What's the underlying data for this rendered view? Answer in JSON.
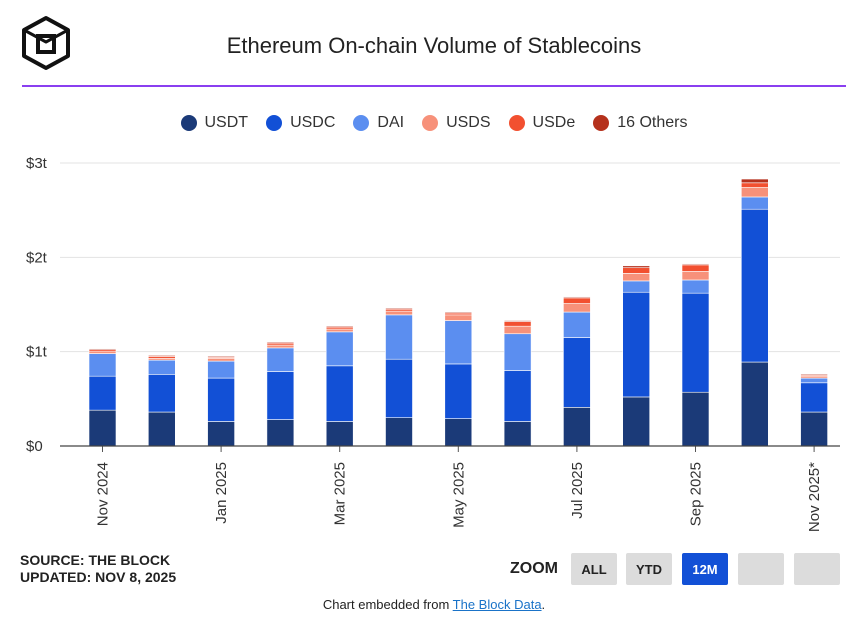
{
  "header": {
    "title": "Ethereum On-chain Volume of Stablecoins"
  },
  "source": {
    "line1": "SOURCE: THE BLOCK",
    "line2": "UPDATED: NOV 8, 2025"
  },
  "zoom": {
    "label": "ZOOM",
    "buttons": [
      "ALL",
      "YTD",
      "12M",
      "",
      ""
    ],
    "active": "12M"
  },
  "footer": {
    "prefix": "Chart embedded from ",
    "link_text": "The Block Data",
    "suffix": "."
  },
  "colors": {
    "accent": "#8a3ff0",
    "active_button": "#1250d6",
    "USDT": "#1b3a78",
    "USDC": "#1250d6",
    "DAI": "#5b8ef0",
    "USDS": "#f7917a",
    "USDe": "#f25030",
    "16 Others": "#b5311c"
  },
  "chart_data": {
    "type": "bar",
    "stacked": true,
    "title": "Ethereum On-chain Volume of Stablecoins",
    "xlabel": "",
    "ylabel": "",
    "ylim": [
      0,
      3
    ],
    "yticks": [
      0,
      1,
      2,
      3
    ],
    "ytick_labels": [
      "$0",
      "$1t",
      "$2t",
      "$3t"
    ],
    "legend_position": "top-center",
    "categories": [
      "Nov 2024",
      "Dec 2024",
      "Jan 2025",
      "Feb 2025",
      "Mar 2025",
      "Apr 2025",
      "May 2025",
      "Jun 2025",
      "Jul 2025",
      "Aug 2025",
      "Sep 2025",
      "Oct 2025",
      "Nov 2025*"
    ],
    "tick_labels": [
      "Nov 2024",
      "",
      "Jan 2025",
      "",
      "Mar 2025",
      "",
      "May 2025",
      "",
      "Jul 2025",
      "",
      "Sep 2025",
      "",
      "Nov 2025*"
    ],
    "series": [
      {
        "name": "USDT",
        "values": [
          0.38,
          0.36,
          0.26,
          0.28,
          0.26,
          0.3,
          0.29,
          0.26,
          0.41,
          0.52,
          0.57,
          0.89,
          0.36
        ]
      },
      {
        "name": "USDC",
        "values": [
          0.36,
          0.4,
          0.46,
          0.51,
          0.59,
          0.62,
          0.58,
          0.54,
          0.74,
          1.11,
          1.05,
          1.62,
          0.31
        ]
      },
      {
        "name": "DAI",
        "values": [
          0.24,
          0.15,
          0.18,
          0.25,
          0.36,
          0.47,
          0.46,
          0.39,
          0.27,
          0.12,
          0.14,
          0.13,
          0.05
        ]
      },
      {
        "name": "USDS",
        "values": [
          0.02,
          0.02,
          0.03,
          0.03,
          0.03,
          0.04,
          0.06,
          0.08,
          0.09,
          0.08,
          0.09,
          0.1,
          0.02
        ]
      },
      {
        "name": "USDe",
        "values": [
          0.02,
          0.02,
          0.01,
          0.02,
          0.02,
          0.02,
          0.02,
          0.05,
          0.06,
          0.06,
          0.07,
          0.05,
          0.01
        ]
      },
      {
        "name": "16 Others",
        "values": [
          0.01,
          0.01,
          0.01,
          0.01,
          0.01,
          0.01,
          0.01,
          0.01,
          0.01,
          0.02,
          0.01,
          0.04,
          0.01
        ]
      }
    ]
  }
}
